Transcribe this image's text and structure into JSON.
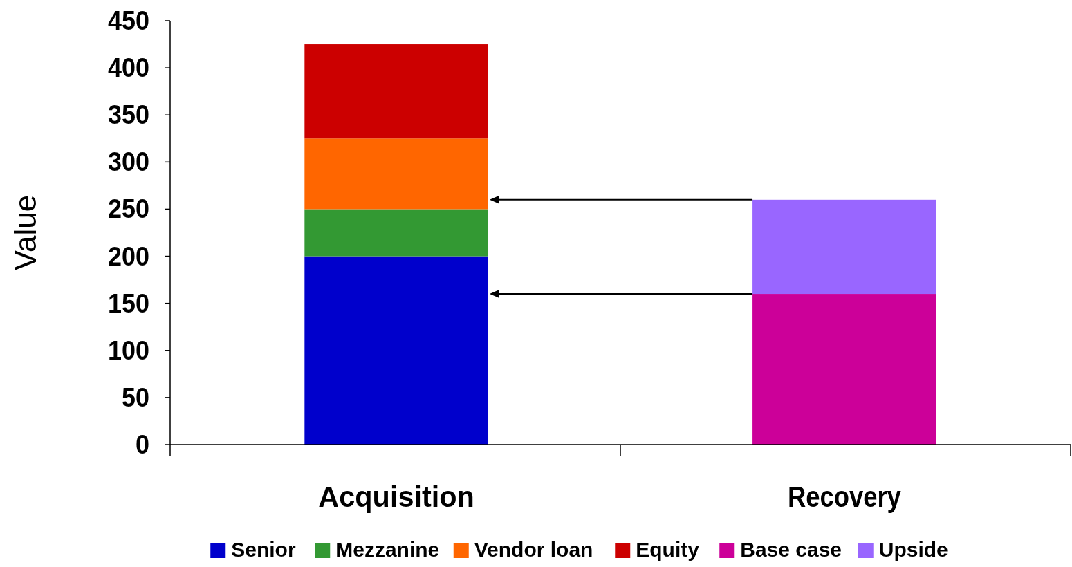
{
  "chart_data": {
    "type": "bar",
    "stacked": true,
    "ylabel": "Value",
    "categories": [
      "Acquisition",
      "Recovery"
    ],
    "series": [
      {
        "name": "Senior",
        "color": "#0000cc",
        "values": [
          200,
          null
        ]
      },
      {
        "name": "Mezzanine",
        "color": "#339933",
        "values": [
          50,
          null
        ]
      },
      {
        "name": "Vendor loan",
        "color": "#ff6600",
        "values": [
          75,
          null
        ]
      },
      {
        "name": "Equity",
        "color": "#cc0000",
        "values": [
          100,
          null
        ]
      },
      {
        "name": "Base case",
        "color": "#cc0099",
        "values": [
          null,
          160
        ]
      },
      {
        "name": "Upside",
        "color": "#9966ff",
        "values": [
          null,
          100
        ]
      }
    ],
    "ylim": [
      0,
      450
    ],
    "yticks": [
      0,
      50,
      100,
      150,
      200,
      250,
      300,
      350,
      400,
      450
    ],
    "grid": false,
    "legend": "bottom"
  }
}
